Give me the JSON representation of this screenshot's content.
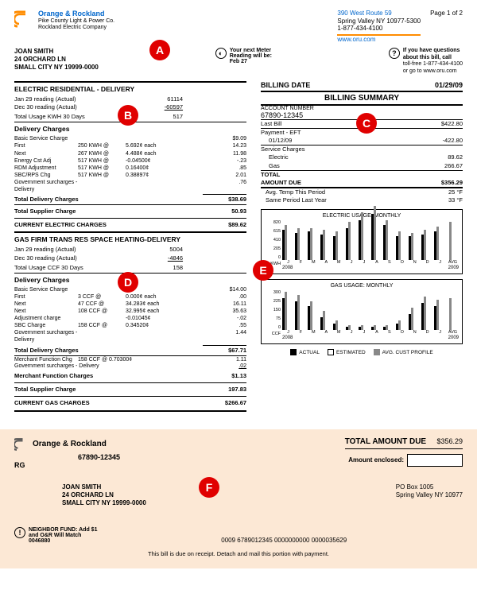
{
  "company": {
    "main": "Orange & Rockland",
    "sub1": "Pike County Light & Power Co.",
    "sub2": "Rockland Electric Company"
  },
  "return_addr": {
    "l1": "390 West Route 59",
    "l2": "Spring Valley NY 10977-5300",
    "l3": "1-877-434-4100",
    "website": "www.oru.com"
  },
  "page_num": "Page 1 of 2",
  "customer": {
    "name": "JOAN SMITH",
    "addr1": "24 ORCHARD LN",
    "addr2": "SMALL CITY NY 19999-0000"
  },
  "meter_note": {
    "l1": "Your next Meter",
    "l2": "Reading will be:",
    "date": "Feb 27"
  },
  "questions": {
    "l1": "If you have questions",
    "l2": "about this bill, call",
    "l3": "toll-free 1-877-434-4100",
    "l4": "or go to www.oru.com"
  },
  "billing_date_lbl": "BILLING DATE",
  "billing_date": "01/29/09",
  "billing_summary_lbl": "BILLING SUMMARY",
  "acct_lbl": "ACCOUNT NUMBER",
  "acct_num": "67890-12345",
  "summary": {
    "last_bill_lbl": "Last Bill",
    "last_bill": "$422.80",
    "payment_lbl": "Payment - EFT",
    "payment_date": "01/12/09",
    "payment": "-422.80",
    "svc_lbl": "Service Charges",
    "elec_lbl": "Electric",
    "elec": "89.62",
    "gas_lbl": "Gas",
    "gas": "266.67",
    "total_lbl": "TOTAL",
    "amount_due_lbl": "AMOUNT DUE",
    "amount_due": "$356.29",
    "temp1_lbl": "Avg. Temp This Period",
    "temp1": "25 °F",
    "temp2_lbl": "Same Period Last Year",
    "temp2": "33 °F"
  },
  "elec": {
    "title": "ELECTRIC RESIDENTIAL - DELIVERY",
    "r1_lbl": "Jan 29  reading (Actual)",
    "r1": "61114",
    "r2_lbl": "Dec 30 reading (Actual)",
    "r2": "-60597",
    "total_lbl": "Total Usage KWH 30 Days",
    "total": "517",
    "delivery_lbl": "Delivery Charges",
    "rows": [
      {
        "c1": "Basic Service Charge",
        "c2": "",
        "c3": "",
        "c4": "$9.09"
      },
      {
        "c1": "First",
        "c2": "250 KWH @",
        "c3": "5.692¢ each",
        "c4": "14.23"
      },
      {
        "c1": "Next",
        "c2": "267 KWH @",
        "c3": "4.488¢ each",
        "c4": "11.98"
      },
      {
        "c1": "Energy Cst Adj",
        "c2": "517 KWH @",
        "c3": "-0.04500¢",
        "c4": "-.23"
      },
      {
        "c1": "RDM Adjustment",
        "c2": "517 KWH @",
        "c3": "0.16400¢",
        "c4": ".85"
      },
      {
        "c1": "SBC/RPS Chg",
        "c2": "517 KWH @",
        "c3": "0.38897¢",
        "c4": "2.01"
      },
      {
        "c1": "Government surcharges - Delivery",
        "c2": "",
        "c3": "",
        "c4": ".76"
      }
    ],
    "tot_del_lbl": "Total Delivery Charges",
    "tot_del": "$38.69",
    "tot_sup_lbl": "Total Supplier Charge",
    "tot_sup": "50.93",
    "current_lbl": "CURRENT ELECTRIC CHARGES",
    "current": "$89.62"
  },
  "gas": {
    "title": "GAS FIRM TRANS RES SPACE HEATING-DELIVERY",
    "r1_lbl": "Jan 29  reading (Actual)",
    "r1": "5004",
    "r2_lbl": "Dec 30 reading (Actual)",
    "r2": "-4846",
    "total_lbl": "Total Usage CCF 30 Days",
    "total": "158",
    "delivery_lbl": "Delivery Charges",
    "rows": [
      {
        "c1": "Basic Service Charge",
        "c2": "",
        "c3": "",
        "c4": "$14.00"
      },
      {
        "c1": "First",
        "c2": "3 CCF @",
        "c3": "0.000¢ each",
        "c4": ".00"
      },
      {
        "c1": "Next",
        "c2": "47 CCF @",
        "c3": "34.283¢ each",
        "c4": "16.11"
      },
      {
        "c1": "Next",
        "c2": "108 CCF @",
        "c3": "32.995¢ each",
        "c4": "35.63"
      },
      {
        "c1": "Adjustment charge",
        "c2": "",
        "c3": "-0.01045¢",
        "c4": "-.02"
      },
      {
        "c1": "SBC Charge",
        "c2": "158 CCF @",
        "c3": "0.34520¢",
        "c4": ".55"
      },
      {
        "c1": "Government surcharges - Delivery",
        "c2": "",
        "c3": "",
        "c4": "1.44"
      }
    ],
    "tot_del_lbl": "Total Delivery Charges",
    "tot_del": "$67.71",
    "merch_lbl": "Merchant Function Chg",
    "merch_detail": "158 CCF @ 0.70300¢",
    "merch": "1.11",
    "merch_gov_lbl": "Government surcharges - Delivery",
    "merch_gov": ".02",
    "merch_tot_lbl": "Merchant Function Charges",
    "merch_tot": "$1.13",
    "tot_sup_lbl": "Total Supplier Charge",
    "tot_sup": "197.83",
    "current_lbl": "CURRENT GAS CHARGES",
    "current": "$266.67"
  },
  "chart_elec": {
    "title": "ELECTRIC USAGE: MONTHLY",
    "unit": "KWH",
    "yticks": [
      "820",
      "615",
      "410",
      "205",
      "0"
    ],
    "months": [
      "J",
      "F",
      "M",
      "A",
      "M",
      "J",
      "J",
      "A",
      "S",
      "O",
      "N",
      "D",
      "J",
      "AVG"
    ],
    "year1": "2008",
    "year2": "2009",
    "actual": [
      38,
      34,
      36,
      32,
      30,
      40,
      50,
      58,
      44,
      30,
      30,
      32,
      36,
      0
    ],
    "avg": [
      44,
      40,
      40,
      38,
      36,
      48,
      60,
      68,
      50,
      36,
      34,
      38,
      42,
      48
    ]
  },
  "chart_gas": {
    "title": "GAS USAGE: MONTHLY",
    "unit": "CCF",
    "yticks": [
      "300",
      "225",
      "150",
      "75",
      "0"
    ],
    "months": [
      "J",
      "F",
      "M",
      "A",
      "M",
      "J",
      "J",
      "A",
      "S",
      "O",
      "N",
      "D",
      "J",
      "AVG"
    ],
    "year1": "2008",
    "year2": "2009",
    "actual": [
      40,
      36,
      30,
      16,
      8,
      4,
      4,
      4,
      4,
      8,
      20,
      34,
      30,
      0
    ],
    "avg": [
      48,
      44,
      36,
      24,
      12,
      6,
      6,
      6,
      6,
      12,
      28,
      42,
      38,
      40
    ]
  },
  "legend": {
    "actual": "ACTUAL",
    "estimated": "ESTIMATED",
    "avg": "AVG. CUST PROFILE"
  },
  "markers": {
    "A": "A",
    "B": "B",
    "C": "C",
    "D": "D",
    "E": "E",
    "F": "F"
  },
  "stub": {
    "co": "Orange & Rockland",
    "acct": "67890-12345",
    "rg": "RG",
    "total_lbl": "TOTAL AMOUNT DUE",
    "total": "$356.29",
    "enclosed_lbl": "Amount enclosed:",
    "cust_name": "JOAN SMITH",
    "cust_a1": "24 ORCHARD LN",
    "cust_a2": "SMALL CITY NY 19999-0000",
    "po1": "PO Box 1005",
    "po2": "Spring Valley NY 10977",
    "neighbor1": "NEIGHBOR FUND: Add $1",
    "neighbor2": "and O&R Will Match",
    "neighbor3": "0046880",
    "ocr": "0009 6789012345 0000000000 0000035629",
    "footer": "This bill is due on receipt. Detach and mail this portion with payment."
  }
}
